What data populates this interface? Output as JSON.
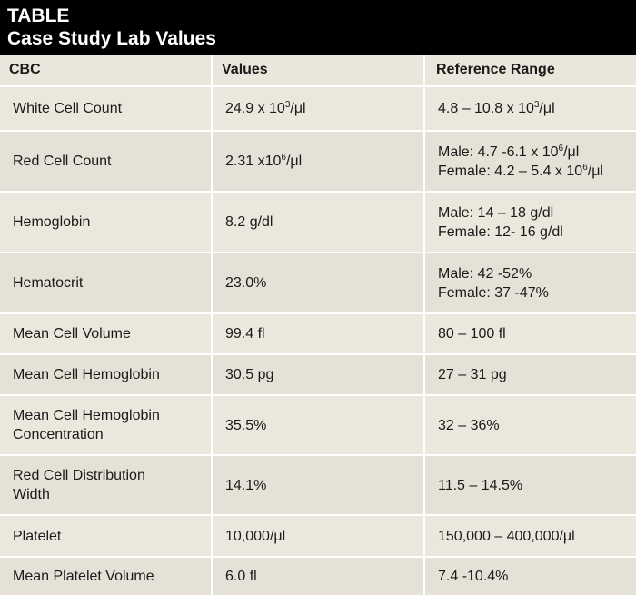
{
  "title": {
    "line1": "TABLE",
    "line2": "Case Study Lab Values"
  },
  "headers": [
    "CBC",
    "Values",
    "Reference Range"
  ],
  "rows": [
    {
      "name": [
        "White Cell Count"
      ],
      "value": {
        "pre": "24.9 x 10",
        "sup": "3",
        "post": "/μl"
      },
      "ref": [
        {
          "pre": "4.8 – 10.8 x 10",
          "sup": "3",
          "post": "/μl"
        }
      ],
      "height": 49
    },
    {
      "name": [
        "Red Cell Count"
      ],
      "value": {
        "pre": "2.31 x10",
        "sup": "6",
        "post": "/μl"
      },
      "ref": [
        {
          "pre": "Male: 4.7 -6.1 x 10",
          "sup": "6",
          "post": "/μl"
        },
        {
          "pre": "Female: 4.2 – 5.4 x 10",
          "sup": "6",
          "post": "/μl"
        }
      ],
      "height": 67
    },
    {
      "name": [
        "Hemoglobin"
      ],
      "value": {
        "pre": "8.2 g/dl",
        "sup": "",
        "post": ""
      },
      "ref": [
        {
          "pre": "Male: 14 – 18 g/dl",
          "sup": "",
          "post": ""
        },
        {
          "pre": "Female: 12- 16 g/dl",
          "sup": "",
          "post": ""
        }
      ],
      "height": 67
    },
    {
      "name": [
        "Hematocrit"
      ],
      "value": {
        "pre": "23.0%",
        "sup": "",
        "post": ""
      },
      "ref": [
        {
          "pre": "Male: 42 -52%",
          "sup": "",
          "post": ""
        },
        {
          "pre": "Female: 37 -47%",
          "sup": "",
          "post": ""
        }
      ],
      "height": 67
    },
    {
      "name": [
        "Mean Cell Volume"
      ],
      "value": {
        "pre": "99.4 fl",
        "sup": "",
        "post": ""
      },
      "ref": [
        {
          "pre": "80 – 100 fl",
          "sup": "",
          "post": ""
        }
      ],
      "height": 45
    },
    {
      "name": [
        "Mean Cell Hemoglobin"
      ],
      "value": {
        "pre": "30.5 pg",
        "sup": "",
        "post": ""
      },
      "ref": [
        {
          "pre": "27 – 31 pg",
          "sup": "",
          "post": ""
        }
      ],
      "height": 45
    },
    {
      "name": [
        "Mean Cell Hemoglobin",
        "Concentration"
      ],
      "value": {
        "pre": "35.5%",
        "sup": "",
        "post": ""
      },
      "ref": [
        {
          "pre": "32 – 36%",
          "sup": "",
          "post": ""
        }
      ],
      "height": 66
    },
    {
      "name": [
        "Red Cell Distribution",
        "Width"
      ],
      "value": {
        "pre": "14.1%",
        "sup": "",
        "post": ""
      },
      "ref": [
        {
          "pre": "11.5 – 14.5%",
          "sup": "",
          "post": ""
        }
      ],
      "height": 66
    },
    {
      "name": [
        "Platelet"
      ],
      "value": {
        "pre": "10,000/μl",
        "sup": "",
        "post": ""
      },
      "ref": [
        {
          "pre": "150,000 – 400,000/μl",
          "sup": "",
          "post": ""
        }
      ],
      "height": 46
    },
    {
      "name": [
        "Mean Platelet Volume"
      ],
      "value": {
        "pre": "6.0 fl",
        "sup": "",
        "post": ""
      },
      "ref": [
        {
          "pre": "7.4 -10.4%",
          "sup": "",
          "post": ""
        }
      ],
      "height": 42
    }
  ]
}
